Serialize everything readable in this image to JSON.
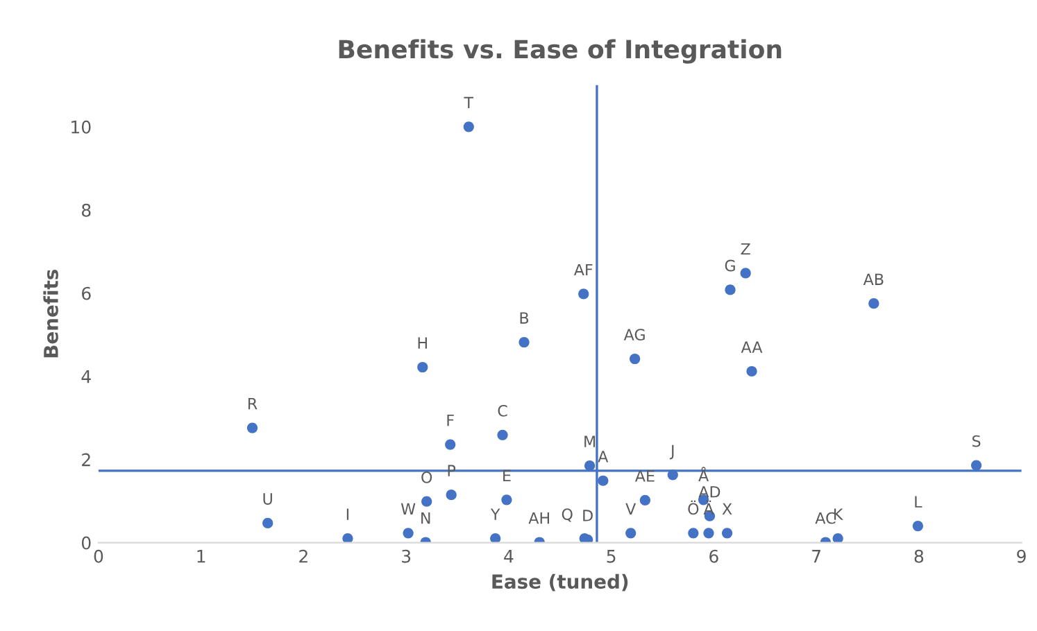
{
  "chart_data": {
    "type": "scatter",
    "title": "Benefits vs. Ease of Integration",
    "xlabel": "Ease (tuned)",
    "ylabel": "Benefits",
    "xlim": [
      0,
      9
    ],
    "xticks": [
      0,
      1,
      2,
      3,
      4,
      5,
      6,
      7,
      8,
      9
    ],
    "ylim": [
      0,
      11
    ],
    "yticks": [
      0,
      2,
      4,
      6,
      8,
      10
    ],
    "grid": false,
    "marker": "circle",
    "series": [
      {
        "color": "#4472c4",
        "x": [
          4.92,
          4.15,
          3.94,
          4.77,
          3.98,
          3.43,
          6.16,
          3.16,
          2.43,
          5.6,
          7.21,
          7.99,
          4.79,
          3.19,
          3.2,
          3.44,
          4.74,
          1.5,
          8.56,
          3.61,
          1.65,
          5.19,
          3.02,
          6.13,
          3.87,
          6.31,
          6.37,
          7.56,
          7.09,
          5.96,
          5.33,
          4.73,
          5.23,
          4.3,
          5.9,
          5.8,
          5.95
        ],
        "values": [
          1.49,
          4.82,
          2.59,
          0.07,
          1.03,
          2.36,
          6.08,
          4.22,
          0.1,
          1.63,
          0.1,
          0.4,
          1.85,
          0.01,
          0.99,
          1.15,
          0.1,
          2.76,
          1.86,
          10.0,
          0.47,
          0.23,
          0.23,
          0.23,
          0.1,
          6.48,
          4.12,
          5.75,
          0.01,
          0.64,
          1.02,
          5.98,
          4.42,
          0.01,
          1.03,
          0.23,
          0.23
        ],
        "value_labels": [
          "A",
          "B",
          "C",
          "D",
          "E",
          "F",
          "G",
          "H",
          "I",
          "J",
          "K",
          "L",
          "M",
          "N",
          "O",
          "P",
          "Q",
          "R",
          "S",
          "T",
          "U",
          "V",
          "W",
          "X",
          "Y",
          "Z",
          "AA",
          "AB",
          "AC",
          "AD",
          "AE",
          "AF",
          "AG",
          "AH",
          "Å",
          "Ö",
          "Ä"
        ]
      }
    ],
    "ref_lines": [
      {
        "axis": "x",
        "value": 4.86,
        "color": "#4472c4"
      },
      {
        "axis": "y",
        "value": 1.73,
        "color": "#4472c4"
      }
    ]
  }
}
